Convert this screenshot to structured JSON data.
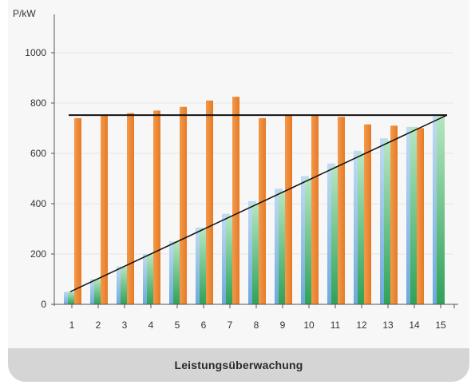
{
  "chart_data": {
    "type": "bar",
    "title": "",
    "xlabel": "",
    "ylabel": "P/kW",
    "ylim": [
      0,
      1100
    ],
    "yticks": [
      0,
      200,
      400,
      600,
      800,
      1000
    ],
    "grid": true,
    "categories": [
      "1",
      "2",
      "3",
      "4",
      "5",
      "6",
      "7",
      "8",
      "9",
      "10",
      "11",
      "12",
      "13",
      "14",
      "15"
    ],
    "series": [
      {
        "values": [
          740,
          750,
          760,
          770,
          785,
          810,
          825,
          740,
          750,
          750,
          745,
          715,
          710,
          700,
          0
        ],
        "color": "#ee8a3a"
      },
      {
        "values": [
          50,
          100,
          150,
          200,
          250,
          305,
          360,
          410,
          460,
          510,
          560,
          610,
          660,
          705,
          755
        ],
        "color_top": "#c0dcf2",
        "color_bottom": "#6ea9dd"
      },
      {
        "values": [
          50,
          100,
          150,
          200,
          250,
          300,
          350,
          400,
          450,
          500,
          550,
          600,
          650,
          705,
          755
        ],
        "color_top": "#b6e6c2",
        "color_bottom": "#2fa257"
      }
    ],
    "reference_lines": [
      {
        "kind": "horizontal",
        "y": 752,
        "x_from": 1,
        "x_to": 15,
        "color": "#111111"
      },
      {
        "kind": "diagonal",
        "x1": 1,
        "y1": 50,
        "x2": 15,
        "y2": 752,
        "color": "#111111"
      }
    ]
  },
  "footer": {
    "title": "Leistungsüberwachung"
  }
}
